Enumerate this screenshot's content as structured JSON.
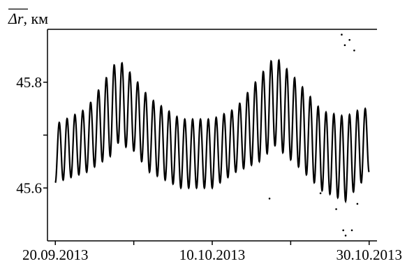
{
  "chart_data": {
    "type": "line",
    "ylabel": "Δr, км",
    "ylabel_symbol": "Δr",
    "ylabel_unit": ", км",
    "ylabel_overline": true,
    "x_axis": "date",
    "xlim": [
      "2013-09-19",
      "2013-10-31"
    ],
    "ylim": [
      45.5,
      45.9
    ],
    "x_ticks": [
      {
        "date": "2013-09-20",
        "label": "20.09.2013"
      },
      {
        "date": "2013-09-30",
        "label": ""
      },
      {
        "date": "2013-10-10",
        "label": "10.10.2013"
      },
      {
        "date": "2013-10-20",
        "label": ""
      },
      {
        "date": "2013-10-30",
        "label": "30.10.2013"
      }
    ],
    "y_ticks": [
      {
        "value": 45.6,
        "label": "45.6"
      },
      {
        "value": 45.7,
        "label": ""
      },
      {
        "value": 45.8,
        "label": "45.8"
      }
    ],
    "grid": false,
    "legend": "none",
    "series": [
      {
        "color": "#000000",
        "description_points": [
          {
            "date": "2013-09-20",
            "mid": 45.665,
            "amp": 0.055
          },
          {
            "date": "2013-09-24",
            "mid": 45.69,
            "amp": 0.06
          },
          {
            "date": "2013-09-27",
            "mid": 45.74,
            "amp": 0.08
          },
          {
            "date": "2013-09-28",
            "mid": 45.765,
            "amp": 0.08
          },
          {
            "date": "2013-09-30",
            "mid": 45.74,
            "amp": 0.07
          },
          {
            "date": "2013-10-02",
            "mid": 45.7,
            "amp": 0.07
          },
          {
            "date": "2013-10-06",
            "mid": 45.665,
            "amp": 0.065
          },
          {
            "date": "2013-10-10",
            "mid": 45.665,
            "amp": 0.065
          },
          {
            "date": "2013-10-13",
            "mid": 45.69,
            "amp": 0.06
          },
          {
            "date": "2013-10-16",
            "mid": 45.73,
            "amp": 0.08
          },
          {
            "date": "2013-10-18",
            "mid": 45.765,
            "amp": 0.085
          },
          {
            "date": "2013-10-21",
            "mid": 45.72,
            "amp": 0.08
          },
          {
            "date": "2013-10-24",
            "mid": 45.67,
            "amp": 0.075
          },
          {
            "date": "2013-10-27",
            "mid": 45.655,
            "amp": 0.08
          },
          {
            "date": "2013-10-29",
            "mid": 45.68,
            "amp": 0.07
          },
          {
            "date": "2013-10-30",
            "mid": 45.69,
            "amp": 0.06
          }
        ],
        "oscillation_period_days": 1.0
      }
    ],
    "outliers": [
      {
        "date": "2013-10-26.5",
        "y": 45.89
      },
      {
        "date": "2013-10-26.9",
        "y": 45.87
      },
      {
        "date": "2013-10-27.5",
        "y": 45.88
      },
      {
        "date": "2013-10-28.1",
        "y": 45.86
      },
      {
        "date": "2013-10-26.7",
        "y": 45.52
      },
      {
        "date": "2013-10-27.0",
        "y": 45.51
      },
      {
        "date": "2013-10-27.8",
        "y": 45.52
      },
      {
        "date": "2013-10-28.5",
        "y": 45.57
      },
      {
        "date": "2013-10-17.3",
        "y": 45.58
      },
      {
        "date": "2013-10-23.8",
        "y": 45.59
      },
      {
        "date": "2013-10-25.8",
        "y": 45.56
      }
    ]
  }
}
